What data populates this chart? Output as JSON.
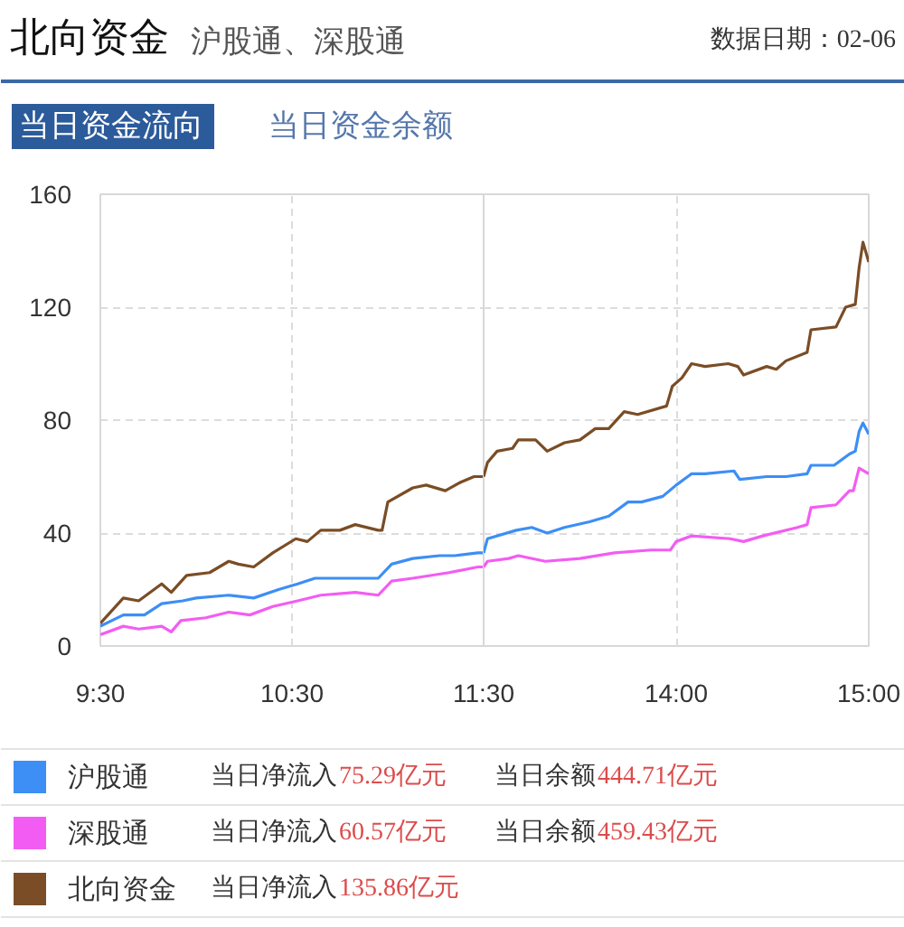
{
  "chart_data": [
    {
      "type": "line",
      "title": "北向资金",
      "subtitle": "沪股通、深股通",
      "annotations": [
        "数据日期：02-06",
        "当日资金流向",
        "当日资金余额",
        "当日净流入75.29亿元",
        "当日余额444.71亿元",
        "当日净流入60.57亿元",
        "当日余额459.43亿元",
        "当日净流入135.86亿元"
      ],
      "xlim": [
        9.5,
        11.5
      ],
      "xticks": [
        {
          "value": 9.5,
          "label": "9:30"
        },
        {
          "value": 10.5,
          "label": "10:30"
        },
        {
          "value": 11.5,
          "label": "11:30"
        }
      ],
      "ylim": [
        0,
        160
      ],
      "yticks": [
        0,
        40,
        80,
        120,
        160
      ],
      "grid": true,
      "legend": "bottom",
      "series": [
        {
          "name": "沪股通",
          "color": "#3d8ef5",
          "x": [
            9.5,
            9.62,
            9.73,
            9.82,
            9.93,
            10.0,
            10.17,
            10.3,
            10.43,
            10.53,
            10.62,
            10.73,
            10.95,
            11.02,
            11.13,
            11.27,
            11.35,
            11.47,
            11.5
          ],
          "values": [
            7,
            11,
            11,
            15,
            16,
            17,
            18,
            17,
            20,
            22,
            24,
            24,
            24,
            29,
            31,
            32,
            32,
            33,
            33
          ]
        },
        {
          "name": "深股通",
          "color": "#f35cf3",
          "x": [
            9.5,
            9.62,
            9.7,
            9.82,
            9.87,
            9.92,
            10.05,
            10.17,
            10.28,
            10.4,
            10.53,
            10.65,
            10.83,
            10.95,
            11.02,
            11.13,
            11.32,
            11.47,
            11.5
          ],
          "values": [
            4,
            7,
            6,
            7,
            5,
            9,
            10,
            12,
            11,
            14,
            16,
            18,
            19,
            18,
            23,
            24,
            26,
            28,
            28
          ]
        },
        {
          "name": "北向资金",
          "color": "#7a4d26",
          "x": [
            9.5,
            9.62,
            9.7,
            9.82,
            9.87,
            9.95,
            10.07,
            10.17,
            10.22,
            10.3,
            10.4,
            10.52,
            10.58,
            10.65,
            10.75,
            10.83,
            10.95,
            10.97,
            11.0,
            11.13,
            11.2,
            11.3,
            11.38,
            11.45,
            11.5
          ],
          "values": [
            8,
            17,
            16,
            22,
            19,
            25,
            26,
            30,
            29,
            28,
            33,
            38,
            37,
            41,
            41,
            43,
            41,
            41,
            51,
            56,
            57,
            55,
            58,
            60,
            60
          ]
        }
      ]
    },
    {
      "type": "line",
      "xlim": [
        13,
        15
      ],
      "xticks": [
        {
          "value": 14,
          "label": "14:00"
        },
        {
          "value": 15,
          "label": "15:00"
        }
      ],
      "ylim": [
        0,
        160
      ],
      "yticks": [
        0,
        40,
        80,
        120,
        160
      ],
      "grid": true,
      "tick_labels": "x",
      "series": [
        {
          "color": "#3d8ef5",
          "x": [
            13.0,
            13.02,
            13.17,
            13.25,
            13.33,
            13.42,
            13.55,
            13.65,
            13.75,
            13.82,
            13.93,
            14.0,
            14.08,
            14.15,
            14.3,
            14.33,
            14.47,
            14.57,
            14.68,
            14.7,
            14.82,
            14.9,
            14.93,
            14.95,
            14.97,
            15.0
          ],
          "values": [
            33,
            38,
            41,
            42,
            40,
            42,
            44,
            46,
            51,
            51,
            53,
            57,
            61,
            61,
            62,
            59,
            60,
            60,
            61,
            64,
            64,
            68,
            69,
            76,
            79,
            75
          ]
        },
        {
          "color": "#f35cf3",
          "x": [
            13.0,
            13.02,
            13.13,
            13.18,
            13.32,
            13.5,
            13.68,
            13.87,
            13.97,
            14.0,
            14.08,
            14.28,
            14.35,
            14.45,
            14.63,
            14.68,
            14.7,
            14.83,
            14.9,
            14.92,
            14.95,
            15.0
          ],
          "values": [
            28,
            30,
            31,
            32,
            30,
            31,
            33,
            34,
            34,
            37,
            39,
            38,
            37,
            39,
            42,
            43,
            49,
            50,
            55,
            55,
            63,
            61
          ]
        },
        {
          "color": "#7a4d26",
          "x": [
            13.0,
            13.02,
            13.07,
            13.15,
            13.18,
            13.27,
            13.33,
            13.42,
            13.5,
            13.58,
            13.65,
            13.73,
            13.8,
            13.95,
            13.98,
            14.03,
            14.08,
            14.15,
            14.27,
            14.32,
            14.35,
            14.47,
            14.52,
            14.57,
            14.68,
            14.7,
            14.83,
            14.88,
            14.93,
            14.95,
            14.97,
            15.0
          ],
          "values": [
            60,
            65,
            69,
            70,
            73,
            73,
            69,
            72,
            73,
            77,
            77,
            83,
            82,
            85,
            92,
            95,
            100,
            99,
            100,
            99,
            96,
            99,
            98,
            101,
            104,
            112,
            113,
            120,
            121,
            134,
            143,
            136
          ]
        }
      ]
    }
  ]
}
